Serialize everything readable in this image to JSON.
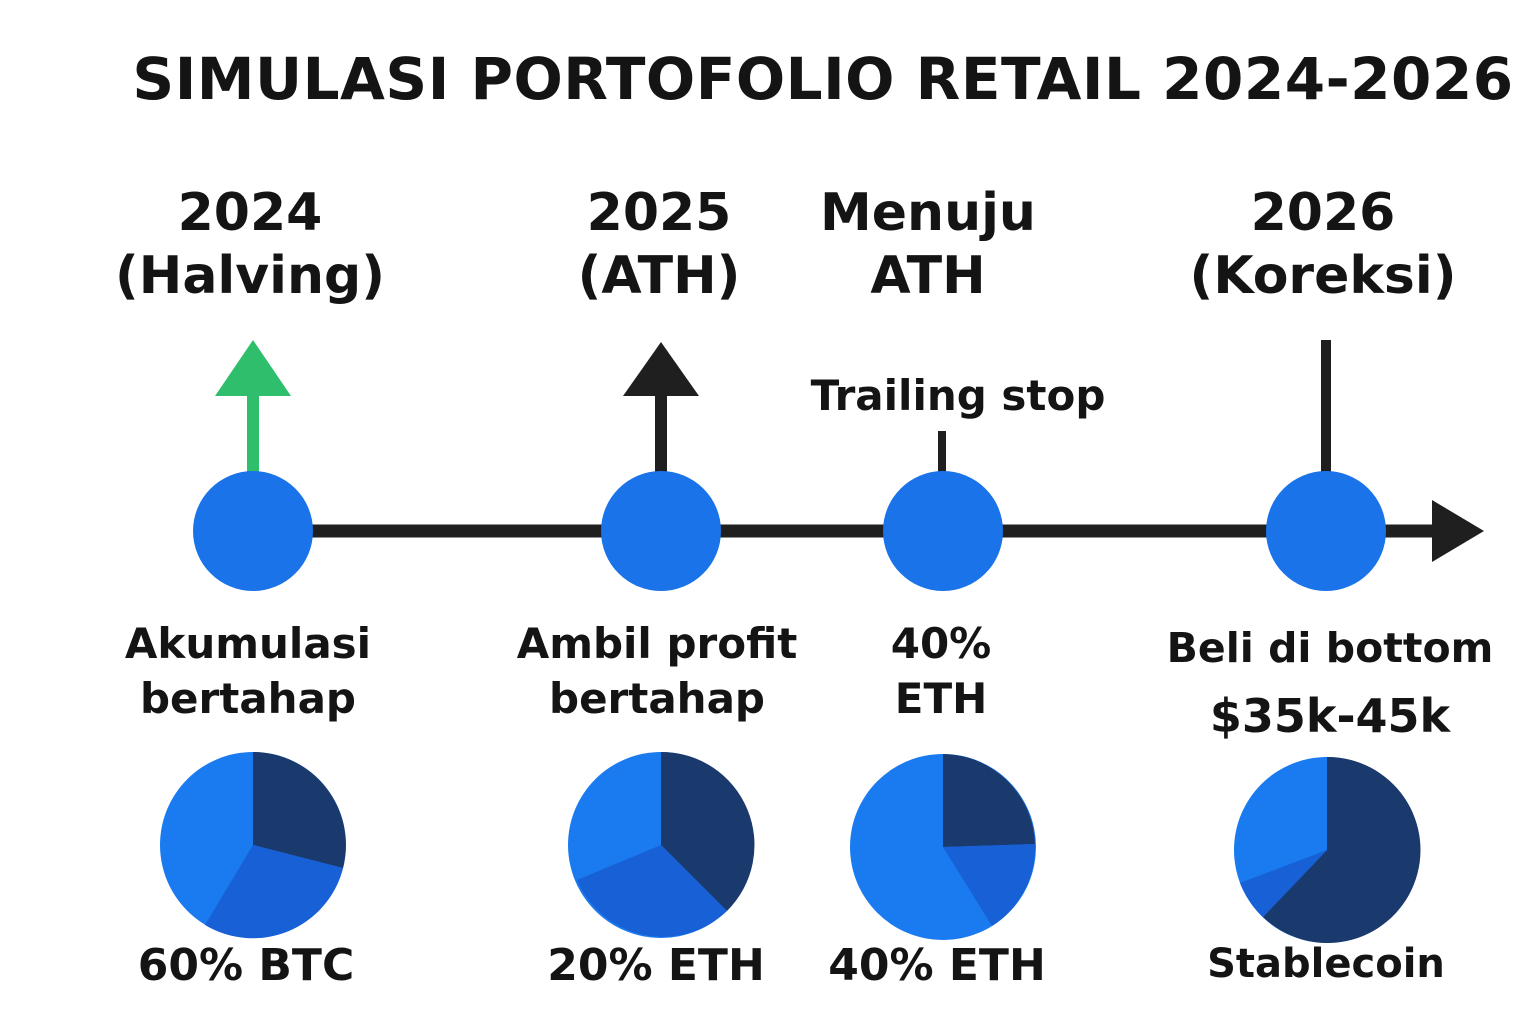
{
  "title": "SIMULASI PORTOFOLIO RETAIL 2024-2026",
  "colors": {
    "accent": "#1a73e8",
    "dark": "#1a3a6e",
    "mid": "#1760d6",
    "bright": "#1a7aef",
    "line": "#1f1f1f",
    "up_arrow": "#2fbf6c"
  },
  "phases": [
    {
      "heading": [
        "2024",
        "(Halving)"
      ],
      "arrow": "green-up-arrow",
      "note": [
        "Akumulasi",
        "bertahap"
      ],
      "bottom_label": "60% BTC"
    },
    {
      "heading": [
        "2025",
        "(ATH)"
      ],
      "arrow": "black-up-arrow",
      "note": [
        "Ambil profit",
        "bertahap"
      ],
      "bottom_label": "20% ETH"
    },
    {
      "heading": [
        "Menuju",
        "ATH"
      ],
      "marker_label": "Trailing stop",
      "note": [
        "40%",
        "ETH"
      ],
      "bottom_label": "40% ETH"
    },
    {
      "heading": [
        "2026",
        "(Koreksi)"
      ],
      "note": [
        "Beli di bottom",
        "$35k-45k"
      ],
      "bottom_label": "Stablecoin"
    }
  ]
}
